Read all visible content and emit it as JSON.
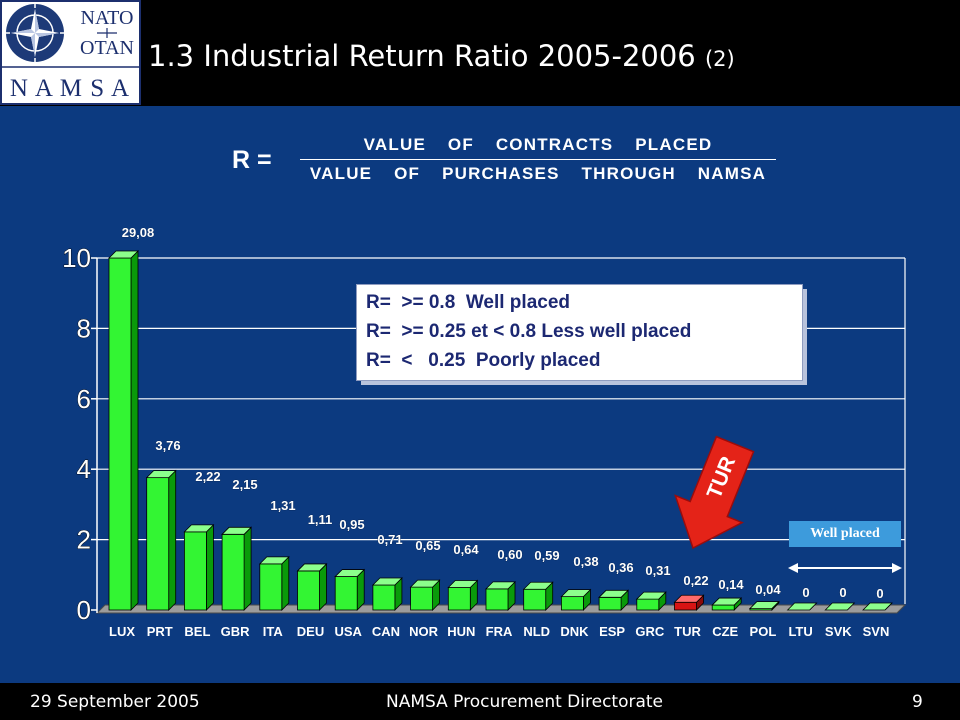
{
  "logo": {
    "top": "NATO",
    "middle": "OTAN",
    "bottom": "N A M S A"
  },
  "header": {
    "title": "1.3 Industrial Return Ratio 2005-2006",
    "title_suffix": "(2)"
  },
  "formula": {
    "lhs": "R =",
    "numerator": "VALUE OF CONTRACTS PLACED",
    "denominator": "VALUE OF PURCHASES THROUGH NAMSA"
  },
  "legend": {
    "lines": [
      "R=  >= 0.8  Well placed",
      "R=  >= 0.25 et < 0.8 Less well placed",
      "R=  <   0.25  Poorly placed"
    ]
  },
  "arrow": {
    "label": "TUR"
  },
  "well_placed": {
    "label": "Well placed"
  },
  "footer": {
    "date": "29 September 2005",
    "center": "NAMSA Procurement Directorate",
    "page": "9"
  },
  "chart_data": {
    "type": "bar",
    "categories": [
      "LUX",
      "PRT",
      "BEL",
      "GBR",
      "ITA",
      "DEU",
      "USA",
      "CAN",
      "NOR",
      "HUN",
      "FRA",
      "NLD",
      "DNK",
      "ESP",
      "GRC",
      "TUR",
      "CZE",
      "POL",
      "LTU",
      "SVK",
      "SVN"
    ],
    "values": [
      29.08,
      3.76,
      2.22,
      2.15,
      1.31,
      1.11,
      0.95,
      0.71,
      0.65,
      0.64,
      0.6,
      0.59,
      0.38,
      0.36,
      0.31,
      0.22,
      0.14,
      0.04,
      0,
      0,
      0
    ],
    "data_labels": [
      "29,08",
      "3,76",
      "2,22",
      "2,15",
      "1,31",
      "1,11",
      "0,95",
      "0,71",
      "0,65",
      "0,64",
      "0,60",
      "0,59",
      "0,38",
      "0,36",
      "0,31",
      "0,22",
      "0,14",
      "0,04",
      "0",
      "0",
      "0"
    ],
    "ylim": [
      0,
      10
    ],
    "yticks": [
      0,
      2,
      4,
      6,
      8,
      10
    ],
    "grid": true,
    "highlight": "TUR",
    "colors": {
      "bar": "#33f533",
      "bar_side": "#0a9a0a",
      "bar_top": "#8cff8c",
      "highlight": "#d81414",
      "highlight_side": "#8a0a0a",
      "highlight_top": "#ff6a6a",
      "floor": "#9c9c9c",
      "background": "#0c3a80"
    }
  }
}
